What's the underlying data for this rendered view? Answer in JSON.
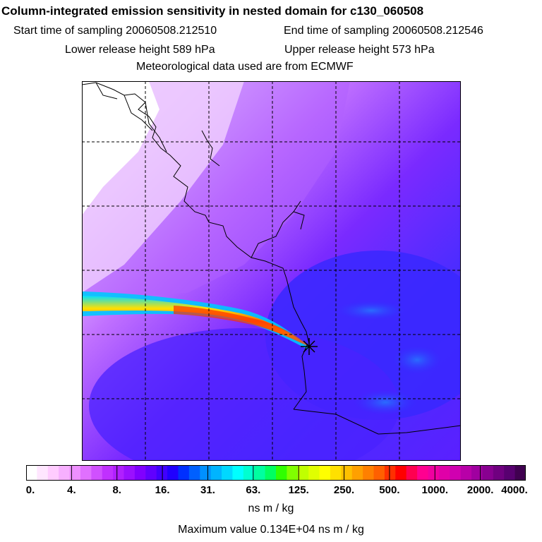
{
  "header": {
    "title": "Column-integrated emission sensitivity in nested domain for c130_060508",
    "start_time": "Start time of sampling 20060508.212510",
    "end_time": "End time of sampling 20060508.212546",
    "lower_height": "Lower release height  589 hPa",
    "upper_height": "Upper release height  573 hPa",
    "met_source": "Meteorological data used are from ECMWF"
  },
  "colorbar": {
    "tick_labels": [
      "0.",
      "4.",
      "8.",
      "16.",
      "31.",
      "63.",
      "125.",
      "250.",
      "500.",
      "1000.",
      "2000.",
      "4000."
    ],
    "colors": [
      "#ffffff",
      "#ffe6ff",
      "#ffccff",
      "#f7b0ff",
      "#ee90ff",
      "#e070ff",
      "#d050ff",
      "#c030ff",
      "#b020ff",
      "#9a10ff",
      "#8000ff",
      "#6000ff",
      "#4000ff",
      "#2000ff",
      "#0030ff",
      "#0060ff",
      "#0090ff",
      "#00b4ff",
      "#00d8ff",
      "#00ffff",
      "#00ffd0",
      "#00ffa0",
      "#00ff60",
      "#30ff00",
      "#80ff00",
      "#c0ff00",
      "#e0ff00",
      "#ffff00",
      "#ffe000",
      "#ffc000",
      "#ffa000",
      "#ff8000",
      "#ff6000",
      "#ff3000",
      "#ff0000",
      "#ff0050",
      "#ff0090",
      "#f000a0",
      "#e000a8",
      "#d000b0",
      "#b800a8",
      "#a000a0",
      "#880090",
      "#700080",
      "#580070",
      "#400050"
    ],
    "units": "ns m / kg"
  },
  "footer": {
    "max_value": "Maximum value  0.134E+04 ns m / kg"
  },
  "map": {
    "release_marker": "release-point",
    "field_colors": {
      "low": "#f5d8ff",
      "mid": "#a040ff",
      "high": "#5a20ff",
      "blue": "#3030ff",
      "light_blue": "#1f90ff"
    }
  }
}
